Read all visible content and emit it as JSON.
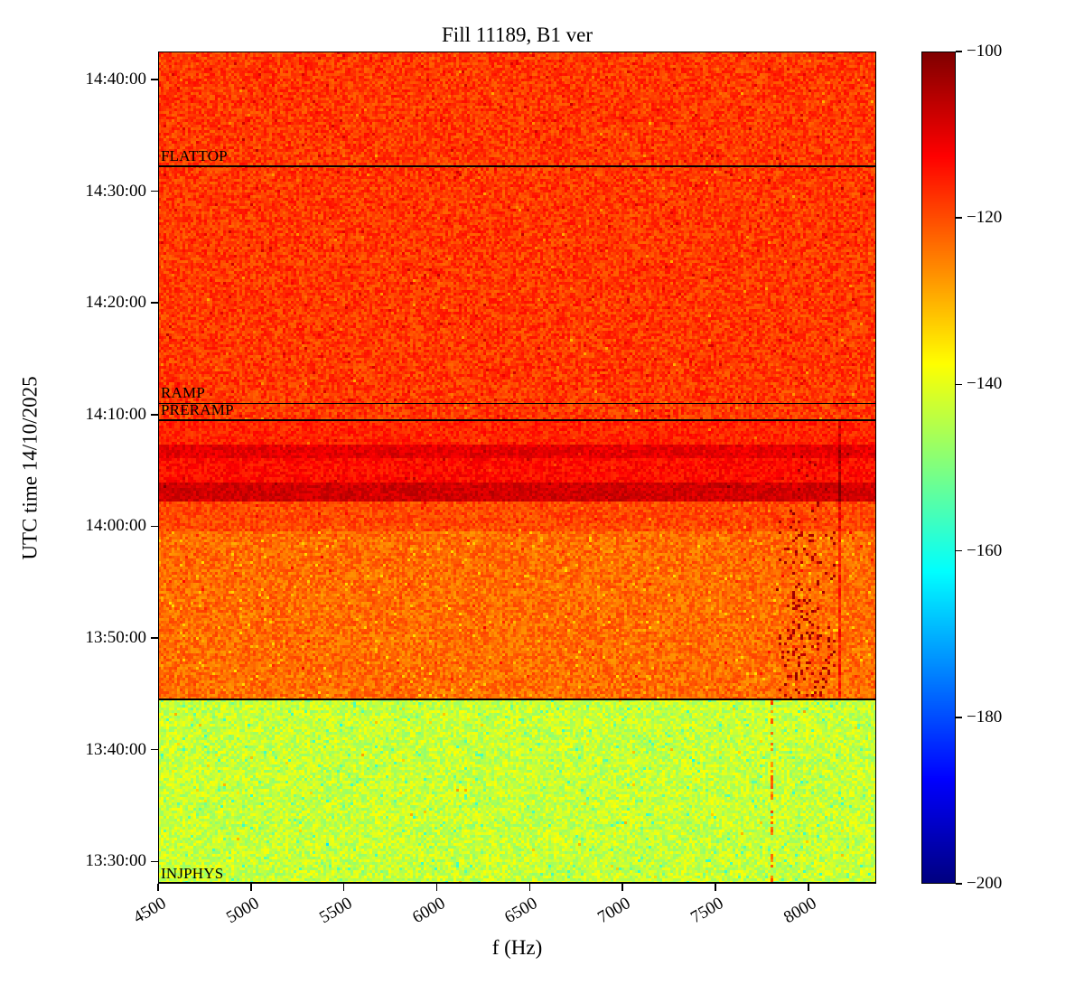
{
  "chart_data": {
    "type": "heatmap",
    "subtype": "spectrogram",
    "title": "Fill 11189, B1 ver",
    "xlabel": "f (Hz)",
    "ylabel": "UTC time 14/10/2025",
    "colormap": "jet",
    "grid": false,
    "freq_axis": {
      "min_hz": 4500,
      "max_hz": 8365,
      "ticks": [
        4500,
        5000,
        5500,
        6000,
        6500,
        7000,
        7500,
        8000
      ]
    },
    "time_axis": {
      "date": "14/10/2025",
      "top_min": 882.5,
      "bottom_min": 808,
      "ticks": [
        "13:30:00",
        "13:40:00",
        "13:50:00",
        "14:00:00",
        "14:10:00",
        "14:20:00",
        "14:30:00",
        "14:40:00"
      ]
    },
    "colorbar": {
      "min_db": -200,
      "max_db": -100,
      "ticks": [
        -100,
        -120,
        -140,
        -160,
        -180,
        -200
      ]
    },
    "annotations": [
      {
        "label": "FLATTOP",
        "time_min": 872.25
      },
      {
        "label": "RAMP",
        "time_min": 851.0
      },
      {
        "label": "PRERAMP",
        "time_min": 849.5
      },
      {
        "label": "",
        "time_min": 824.5
      },
      {
        "label": "INJPHYS",
        "time_min": 808.0
      }
    ],
    "regions": [
      {
        "name": "injphys-green",
        "from_min": 808.0,
        "to_min": 824.5,
        "value_db": -143,
        "noise_db": 5.5,
        "speckle_db": -9,
        "speckle_p": 0.03
      },
      {
        "name": "post-injection-orange",
        "from_min": 824.5,
        "to_min": 839.5,
        "value_db": -123,
        "noise_db": 4.5,
        "speckle_db": -7,
        "speckle_p": 0.03
      },
      {
        "name": "pre-dark-band",
        "from_min": 839.5,
        "to_min": 842.3,
        "value_db": -119.5,
        "noise_db": 4.0
      },
      {
        "name": "dark-band-1",
        "from_min": 842.3,
        "to_min": 843.9,
        "value_db": -108,
        "noise_db": 3.0
      },
      {
        "name": "between-dark-bands",
        "from_min": 843.9,
        "to_min": 846.2,
        "value_db": -113.5,
        "noise_db": 3.5
      },
      {
        "name": "dark-band-2",
        "from_min": 846.2,
        "to_min": 847.4,
        "value_db": -110,
        "noise_db": 3.0
      },
      {
        "name": "preramp-red",
        "from_min": 847.4,
        "to_min": 849.5,
        "value_db": -116,
        "noise_db": 3.5
      },
      {
        "name": "ramp-flattop-red",
        "from_min": 849.5,
        "to_min": 882.5,
        "value_db": -118,
        "noise_db": 4.5,
        "speckle_db": 6,
        "speckle_p": 0.015
      }
    ],
    "artifacts": [
      {
        "type": "dash_cluster",
        "f_hz": [
          7830,
          8150
        ],
        "time_min": [
          824.5,
          843.5
        ],
        "probability": 0.22,
        "value_db": -104,
        "time_fade": true
      },
      {
        "type": "dash_cluster",
        "f_hz": [
          7850,
          8100
        ],
        "time_min": [
          843.5,
          847.2
        ],
        "probability": 0.06,
        "value_db": -105
      },
      {
        "type": "vline",
        "f_hz": 8170,
        "width_hz": 15,
        "time_min": [
          824.5,
          849.5
        ],
        "delta_db": 8,
        "probability": 1
      },
      {
        "type": "vline",
        "f_hz": 7810,
        "width_hz": 14,
        "time_min": [
          808,
          824.5
        ],
        "delta_db": 20,
        "probability": 0.45
      }
    ]
  }
}
